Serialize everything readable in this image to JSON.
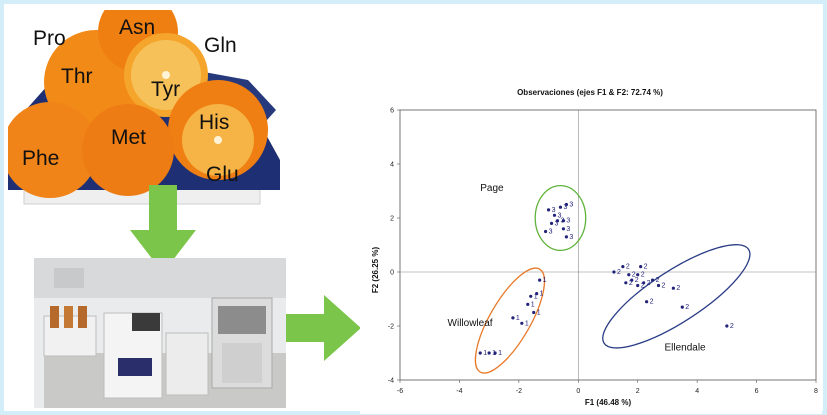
{
  "amino_acids": [
    "Pro",
    "Asn",
    "Gln",
    "Thr",
    "Tyr",
    "His",
    "Met",
    "Phe",
    "Glu"
  ],
  "chart_data": {
    "type": "scatter",
    "title": "Observaciones (ejes F1 & F2: 72.74 %)",
    "xlabel": "F1 (46.48 %)",
    "ylabel": "F2 (26.25 %)",
    "xlim": [
      -6,
      8
    ],
    "ylim": [
      -4,
      6
    ],
    "xticks": [
      "-6",
      "-4",
      "-2",
      "0",
      "2",
      "4",
      "6",
      "8"
    ],
    "yticks": [
      "-4",
      "-2",
      "0",
      "2",
      "4",
      "6"
    ],
    "grid": false,
    "groups": [
      {
        "name": "Page",
        "label": "3",
        "color": "#22247a",
        "ellipse_color": "#5fb33a",
        "ellipse": {
          "cx": -0.6,
          "cy": 2.0,
          "rx": 0.85,
          "ry": 1.2,
          "rot": 0
        },
        "points": [
          [
            -1.1,
            1.5
          ],
          [
            -0.9,
            1.8
          ],
          [
            -0.8,
            2.1
          ],
          [
            -0.6,
            2.4
          ],
          [
            -0.5,
            1.9
          ],
          [
            -0.4,
            2.5
          ],
          [
            -0.5,
            1.6
          ],
          [
            -0.4,
            1.3
          ],
          [
            -0.7,
            1.9
          ],
          [
            -1.0,
            2.3
          ]
        ]
      },
      {
        "name": "Willowleaf",
        "label": "1",
        "color": "#22247a",
        "ellipse_color": "#e87a2a",
        "ellipse": {
          "cx": -2.3,
          "cy": -1.8,
          "rx": 2.0,
          "ry": 0.75,
          "rot": -60
        },
        "points": [
          [
            -3.3,
            -3.0
          ],
          [
            -3.0,
            -3.0
          ],
          [
            -2.8,
            -3.0
          ],
          [
            -2.2,
            -1.7
          ],
          [
            -1.9,
            -1.9
          ],
          [
            -1.7,
            -1.2
          ],
          [
            -1.5,
            -1.5
          ],
          [
            -1.4,
            -0.8
          ],
          [
            -1.6,
            -0.9
          ],
          [
            -1.3,
            -0.3
          ]
        ]
      },
      {
        "name": "Ellendale",
        "label": "2",
        "color": "#22247a",
        "ellipse_color": "#2a3d86",
        "ellipse": {
          "cx": 3.3,
          "cy": -0.9,
          "rx": 2.9,
          "ry": 0.95,
          "rot": -33
        },
        "points": [
          [
            1.2,
            0.0
          ],
          [
            1.5,
            0.2
          ],
          [
            1.7,
            -0.1
          ],
          [
            1.8,
            -0.3
          ],
          [
            2.0,
            -0.1
          ],
          [
            2.1,
            0.2
          ],
          [
            2.2,
            -0.4
          ],
          [
            2.3,
            -1.1
          ],
          [
            2.5,
            -0.3
          ],
          [
            2.7,
            -0.5
          ],
          [
            3.2,
            -0.6
          ],
          [
            3.5,
            -1.3
          ],
          [
            5.0,
            -2.0
          ],
          [
            1.6,
            -0.4
          ],
          [
            2.0,
            -0.5
          ]
        ]
      }
    ]
  }
}
